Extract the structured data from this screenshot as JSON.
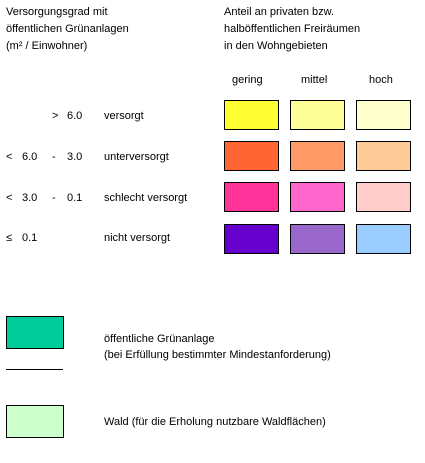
{
  "left_title": {
    "lines": [
      "Versorgungsgrad mit",
      "öffentlichen Grünanlagen",
      "(m² / Einwohner)"
    ]
  },
  "right_title": {
    "lines": [
      "Anteil an privaten bzw.",
      "halböffentlichen Freiräumen",
      "in den Wohngebieten"
    ]
  },
  "columns": [
    "gering",
    "mittel",
    "hoch"
  ],
  "rows": [
    {
      "op": ">",
      "from": "6.0",
      "dash": "",
      "to": "",
      "label": "versorgt",
      "colors": [
        "#ffff33",
        "#ffff99",
        "#ffffcc"
      ]
    },
    {
      "op": "<",
      "from": "6.0",
      "dash": "-",
      "to": "3.0",
      "label": "unterversorgt",
      "colors": [
        "#ff6633",
        "#ff9966",
        "#ffcc99"
      ]
    },
    {
      "op": "<",
      "from": "3.0",
      "dash": "-",
      "to": "0.1",
      "label": "schlecht versorgt",
      "colors": [
        "#ff3399",
        "#ff66cc",
        "#ffcccc"
      ]
    },
    {
      "op": "≤",
      "from": "0.1",
      "dash": "",
      "to": "",
      "label": "nicht versorgt",
      "colors": [
        "#6600cc",
        "#9966cc",
        "#99ccff"
      ]
    }
  ],
  "extra_legend": [
    {
      "color": "#00cc99",
      "lines": [
        "öffentliche Grünanlage",
        "(bei Erfüllung bestimmter Mindestanforderung)"
      ]
    },
    {
      "color": "#ccffcc",
      "lines": [
        "Wald (für die Erholung nutzbare Waldflächen)"
      ]
    }
  ]
}
